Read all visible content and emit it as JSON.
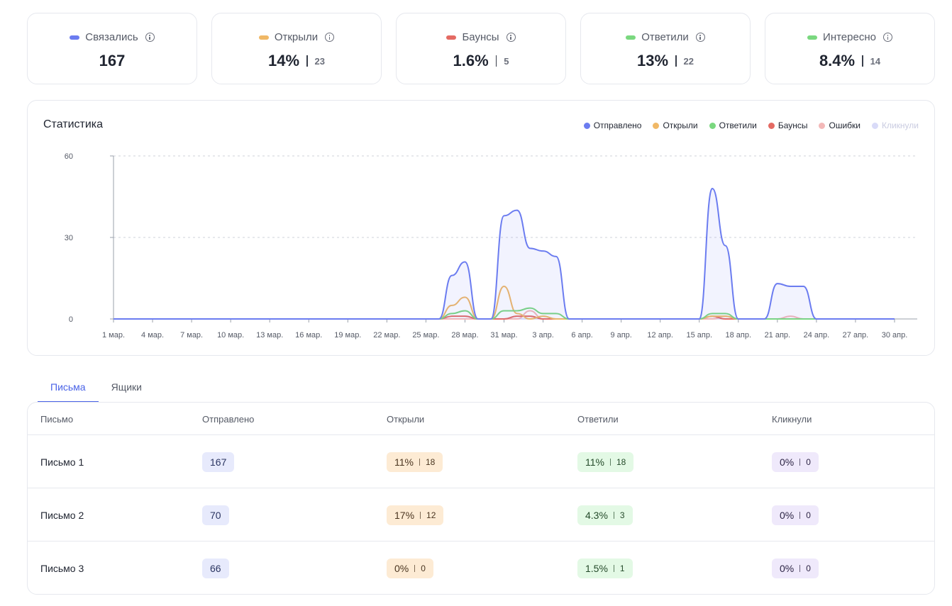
{
  "kpis": [
    {
      "label": "Связались",
      "value": "167",
      "count": "",
      "color": "#6b7cf0"
    },
    {
      "label": "Открыли",
      "value": "14%",
      "count": "23",
      "color": "#f0b866"
    },
    {
      "label": "Баунсы",
      "value": "1.6%",
      "count": "5",
      "color": "#e46a63"
    },
    {
      "label": "Ответили",
      "value": "13%",
      "count": "22",
      "color": "#7ad87f"
    },
    {
      "label": "Интересно",
      "value": "8.4%",
      "count": "14",
      "color": "#7ad87f"
    }
  ],
  "stats": {
    "title": "Статистика",
    "legend": [
      {
        "label": "Отправлено",
        "color": "#6b7cf0"
      },
      {
        "label": "Открыли",
        "color": "#f0b866"
      },
      {
        "label": "Ответили",
        "color": "#7ad87f"
      },
      {
        "label": "Баунсы",
        "color": "#e46a63"
      },
      {
        "label": "Ошибки",
        "color": "#f3b8b8"
      },
      {
        "label": "Кликнули",
        "color": "#d9dbf8"
      }
    ]
  },
  "chart_data": {
    "type": "area",
    "title": "Статистика",
    "xlabel": "",
    "ylabel": "",
    "ylim": [
      0,
      60
    ],
    "yticks": [
      "60",
      "30",
      "0"
    ],
    "grid": true,
    "legend_position": "top-right",
    "x_tick_labels": [
      "1 мар.",
      "4 мар.",
      "7 мар.",
      "10 мар.",
      "13 мар.",
      "16 мар.",
      "19 мар.",
      "22 мар.",
      "25 мар.",
      "28 мар.",
      "31 мар.",
      "3 апр.",
      "6 апр.",
      "9 апр.",
      "12 апр.",
      "15 апр.",
      "18 апр.",
      "21 апр.",
      "24 апр.",
      "27 апр.",
      "30 апр."
    ],
    "x": [
      "1 мар.",
      "2 мар.",
      "3 мар.",
      "4 мар.",
      "5 мар.",
      "6 мар.",
      "7 мар.",
      "8 мар.",
      "9 мар.",
      "10 мар.",
      "11 мар.",
      "12 мар.",
      "13 мар.",
      "14 мар.",
      "15 мар.",
      "16 мар.",
      "17 мар.",
      "18 мар.",
      "19 мар.",
      "20 мар.",
      "21 мар.",
      "22 мар.",
      "23 мар.",
      "24 мар.",
      "25 мар.",
      "26 мар.",
      "27 мар.",
      "28 мар.",
      "29 мар.",
      "30 мар.",
      "31 мар.",
      "1 апр.",
      "2 апр.",
      "3 апр.",
      "4 апр.",
      "5 апр.",
      "6 апр.",
      "7 апр.",
      "8 апр.",
      "9 апр.",
      "10 апр.",
      "11 апр.",
      "12 апр.",
      "13 апр.",
      "14 апр.",
      "15 апр.",
      "16 апр.",
      "17 апр.",
      "18 апр.",
      "19 апр.",
      "20 апр.",
      "21 апр.",
      "22 апр.",
      "23 апр.",
      "24 апр.",
      "25 апр.",
      "26 апр.",
      "27 апр.",
      "28 апр.",
      "29 апр.",
      "30 апр."
    ],
    "series": [
      {
        "name": "Отправлено",
        "color": "#6b7cf0",
        "fill": true,
        "values": [
          0,
          0,
          0,
          0,
          0,
          0,
          0,
          0,
          0,
          0,
          0,
          0,
          0,
          0,
          0,
          0,
          0,
          0,
          0,
          0,
          0,
          0,
          0,
          0,
          0,
          0,
          16,
          21,
          0,
          0,
          38,
          40,
          26,
          25,
          23,
          0,
          0,
          0,
          0,
          0,
          0,
          0,
          0,
          0,
          0,
          0,
          48,
          27,
          0,
          0,
          0,
          13,
          12,
          12,
          0,
          0,
          0,
          0,
          0,
          0,
          0
        ]
      },
      {
        "name": "Открыли",
        "color": "#f0b866",
        "fill": false,
        "values": [
          0,
          0,
          0,
          0,
          0,
          0,
          0,
          0,
          0,
          0,
          0,
          0,
          0,
          0,
          0,
          0,
          0,
          0,
          0,
          0,
          0,
          0,
          0,
          0,
          0,
          0,
          5,
          8,
          0,
          0,
          12,
          2,
          0,
          1,
          0,
          0,
          0,
          0,
          0,
          0,
          0,
          0,
          0,
          0,
          0,
          0,
          1,
          1,
          0,
          0,
          0,
          0,
          0,
          0,
          0,
          0,
          0,
          0,
          0,
          0,
          0
        ]
      },
      {
        "name": "Ответили",
        "color": "#7ad87f",
        "fill": false,
        "values": [
          0,
          0,
          0,
          0,
          0,
          0,
          0,
          0,
          0,
          0,
          0,
          0,
          0,
          0,
          0,
          0,
          0,
          0,
          0,
          0,
          0,
          0,
          0,
          0,
          0,
          0,
          2,
          3,
          0,
          0,
          3,
          3,
          4,
          2,
          2,
          0,
          0,
          0,
          0,
          0,
          0,
          0,
          0,
          0,
          0,
          0,
          2,
          2,
          0,
          0,
          0,
          0,
          0,
          0,
          0,
          0,
          0,
          0,
          0,
          0,
          0
        ]
      },
      {
        "name": "Баунсы",
        "color": "#e46a63",
        "fill": false,
        "values": [
          0,
          0,
          0,
          0,
          0,
          0,
          0,
          0,
          0,
          0,
          0,
          0,
          0,
          0,
          0,
          0,
          0,
          0,
          0,
          0,
          0,
          0,
          0,
          0,
          0,
          0,
          1,
          1,
          0,
          0,
          0,
          1,
          1,
          0,
          0,
          0,
          0,
          0,
          0,
          0,
          0,
          0,
          0,
          0,
          0,
          0,
          1,
          0,
          0,
          0,
          0,
          0,
          0,
          0,
          0,
          0,
          0,
          0,
          0,
          0,
          0
        ]
      },
      {
        "name": "Ошибки",
        "color": "#f3b8b8",
        "fill": false,
        "values": [
          0,
          0,
          0,
          0,
          0,
          0,
          0,
          0,
          0,
          0,
          0,
          0,
          0,
          0,
          0,
          0,
          0,
          0,
          0,
          0,
          0,
          0,
          0,
          0,
          0,
          0,
          0,
          0,
          0,
          0,
          0,
          0,
          3,
          0,
          0,
          0,
          0,
          0,
          0,
          0,
          0,
          0,
          0,
          0,
          0,
          0,
          0,
          1,
          0,
          0,
          0,
          0,
          1,
          0,
          0,
          0,
          0,
          0,
          0,
          0,
          0
        ]
      },
      {
        "name": "Кликнули",
        "color": "#d9dbf8",
        "fill": false,
        "values": [
          0,
          0,
          0,
          0,
          0,
          0,
          0,
          0,
          0,
          0,
          0,
          0,
          0,
          0,
          0,
          0,
          0,
          0,
          0,
          0,
          0,
          0,
          0,
          0,
          0,
          0,
          0,
          0,
          0,
          0,
          0,
          0,
          0,
          0,
          0,
          0,
          0,
          0,
          0,
          0,
          0,
          0,
          0,
          0,
          0,
          0,
          0,
          0,
          0,
          0,
          0,
          0,
          0,
          0,
          0,
          0,
          0,
          0,
          0,
          0,
          0
        ]
      }
    ]
  },
  "tabs": [
    {
      "label": "Письма",
      "active": true
    },
    {
      "label": "Ящики",
      "active": false
    }
  ],
  "table": {
    "headers": [
      "Письмо",
      "Отправлено",
      "Открыли",
      "Ответили",
      "Кликнули"
    ],
    "rows": [
      {
        "name": "Письмо 1",
        "sent": "167",
        "opened_pct": "11%",
        "opened_n": "18",
        "replied_pct": "11%",
        "replied_n": "18",
        "clicked_pct": "0%",
        "clicked_n": "0"
      },
      {
        "name": "Письмо 2",
        "sent": "70",
        "opened_pct": "17%",
        "opened_n": "12",
        "replied_pct": "4.3%",
        "replied_n": "3",
        "clicked_pct": "0%",
        "clicked_n": "0"
      },
      {
        "name": "Письмо 3",
        "sent": "66",
        "opened_pct": "0%",
        "opened_n": "0",
        "replied_pct": "1.5%",
        "replied_n": "1",
        "clicked_pct": "0%",
        "clicked_n": "0"
      }
    ]
  }
}
